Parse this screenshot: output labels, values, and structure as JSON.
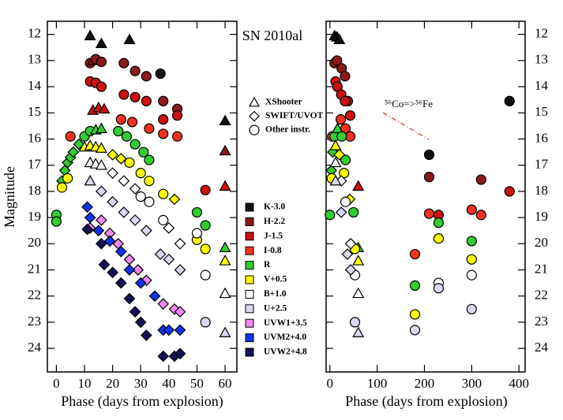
{
  "chart_data": {
    "type": "scatter",
    "title": "SN 2010al",
    "xlabel": "Phase (days from explosion)",
    "ylabel": "Magnitude",
    "annotation": "⁵⁶Co=>⁵⁶Fe",
    "ylim": [
      11.5,
      24.9
    ],
    "yticks": [
      12,
      13,
      14,
      15,
      16,
      17,
      18,
      19,
      20,
      21,
      22,
      23,
      24
    ],
    "bands": [
      {
        "name": "K-3.0",
        "color": "#111111"
      },
      {
        "name": "H-2.2",
        "color": "#8b1a1a"
      },
      {
        "name": "J-1.5",
        "color": "#cc1111"
      },
      {
        "name": "I-0.8",
        "color": "#ee3322"
      },
      {
        "name": "R",
        "color": "#33cc33"
      },
      {
        "name": "V+0.5",
        "color": "#ffff00"
      },
      {
        "name": "B+1.0",
        "color": "#ffffff"
      },
      {
        "name": "U+2.5",
        "color": "#d8d8f0"
      },
      {
        "name": "UVW1+3.5",
        "color": "#ee88ee"
      },
      {
        "name": "UVM2+4.0",
        "color": "#1133ee"
      },
      {
        "name": "UVW2+4.8",
        "color": "#111155"
      }
    ],
    "instrument_legend": [
      {
        "marker": "t",
        "label": "XShooter"
      },
      {
        "marker": "d",
        "label": "SWIFT/UVOT"
      },
      {
        "marker": "o",
        "label": "Other instr."
      }
    ],
    "panels": [
      {
        "xlim": [
          -3.2,
          64.2
        ],
        "xticks": [
          0,
          10,
          20,
          30,
          40,
          50,
          60
        ],
        "series": [
          {
            "x": [
              12,
              16,
              26,
              37,
              60
            ],
            "values": [
              12.05,
              12.35,
              12.2,
              13.5,
              15.3
            ],
            "markers": [
              "t",
              "t",
              "t",
              "o",
              "t"
            ]
          },
          {
            "x": [
              12,
              13,
              14,
              16,
              24,
              28,
              32,
              38,
              43,
              60
            ],
            "values": [
              13.1,
              13.0,
              12.95,
              13.05,
              13.1,
              13.4,
              13.6,
              14.55,
              14.85,
              16.45
            ],
            "markers": [
              "o",
              "t",
              "o",
              "o",
              "o",
              "o",
              "o",
              "o",
              "o",
              "t"
            ]
          },
          {
            "x": [
              12,
              14,
              16,
              13,
              15,
              17,
              24,
              28,
              32,
              38,
              43,
              53,
              60
            ],
            "values": [
              13.8,
              13.85,
              14.0,
              14.9,
              14.8,
              14.85,
              14.3,
              14.4,
              14.55,
              15.25,
              15.1,
              17.95,
              17.8
            ],
            "markers": [
              "o",
              "o",
              "o",
              "t",
              "t",
              "t",
              "o",
              "o",
              "o",
              "o",
              "o",
              "o",
              "t"
            ]
          },
          {
            "x": [
              5,
              23,
              27,
              33,
              38,
              43
            ],
            "values": [
              15.9,
              15.25,
              15.35,
              15.6,
              15.8,
              15.9
            ],
            "markers": [
              "o",
              "o",
              "o",
              "o",
              "o",
              "o"
            ]
          },
          {
            "x": [
              0,
              0,
              2,
              3,
              4,
              5,
              6,
              8,
              10,
              12,
              14,
              16,
              22,
              25,
              28,
              31,
              33,
              50,
              53,
              60
            ],
            "values": [
              18.9,
              19.15,
              17.6,
              17.2,
              16.9,
              16.7,
              16.5,
              16.2,
              15.9,
              15.7,
              15.65,
              15.6,
              15.7,
              15.9,
              16.2,
              16.5,
              16.8,
              18.8,
              19.3,
              20.15
            ],
            "markers": [
              "o",
              "o",
              "d",
              "d",
              "d",
              "d",
              "d",
              "d",
              "o",
              "o",
              "t",
              "t",
              "o",
              "o",
              "o",
              "o",
              "o",
              "o",
              "o",
              "t"
            ]
          },
          {
            "x": [
              2,
              4,
              10,
              12,
              14,
              16,
              20,
              23,
              26,
              30,
              33,
              38,
              42,
              50,
              53,
              60
            ],
            "values": [
              17.85,
              17.5,
              16.3,
              16.25,
              16.3,
              16.35,
              16.6,
              16.75,
              16.9,
              17.3,
              17.6,
              18.1,
              18.3,
              19.85,
              20.2,
              20.65
            ],
            "markers": [
              "o",
              "o",
              "t",
              "t",
              "t",
              "t",
              "d",
              "d",
              "o",
              "o",
              "o",
              "o",
              "d",
              "o",
              "o",
              "t"
            ]
          },
          {
            "x": [
              12,
              14,
              16,
              20,
              24,
              28,
              30,
              33,
              38,
              40,
              44,
              50,
              53,
              60
            ],
            "values": [
              16.9,
              16.95,
              17.0,
              17.3,
              17.6,
              17.9,
              18.2,
              18.4,
              19.1,
              19.4,
              20.0,
              19.6,
              21.2,
              21.9
            ],
            "markers": [
              "t",
              "t",
              "t",
              "d",
              "d",
              "d",
              "o",
              "o",
              "o",
              "d",
              "d",
              "o",
              "o",
              "t"
            ]
          },
          {
            "x": [
              12,
              16,
              20,
              24,
              28,
              32,
              37,
              40,
              44,
              53,
              60
            ],
            "values": [
              17.6,
              18.0,
              18.4,
              18.8,
              19.1,
              19.5,
              20.4,
              20.6,
              21.0,
              23.0,
              23.4
            ],
            "markers": [
              "t",
              "d",
              "d",
              "d",
              "d",
              "d",
              "d",
              "d",
              "d",
              "o",
              "t"
            ]
          },
          {
            "x": [
              12,
              16,
              19,
              22,
              26,
              29,
              32,
              38,
              42,
              44
            ],
            "values": [
              19.4,
              19.1,
              19.6,
              20.0,
              20.6,
              21.0,
              21.4,
              22.3,
              22.5,
              22.6
            ],
            "markers": [
              "d",
              "d",
              "d",
              "d",
              "d",
              "d",
              "d",
              "d",
              "d",
              "d"
            ]
          },
          {
            "x": [
              11,
              12,
              15,
              19,
              23,
              26,
              30,
              35,
              38,
              40,
              44
            ],
            "values": [
              18.6,
              19.0,
              19.5,
              19.9,
              20.3,
              21.0,
              21.5,
              22.0,
              23.3,
              23.3,
              23.3
            ],
            "markers": [
              "d",
              "d",
              "d",
              "d",
              "d",
              "d",
              "d",
              "d",
              "d",
              "d",
              "d"
            ]
          },
          {
            "x": [
              11,
              16,
              17,
              20,
              23,
              26,
              28,
              30,
              32,
              38,
              42,
              44
            ],
            "values": [
              19.45,
              20.0,
              20.8,
              21.1,
              21.5,
              22.1,
              22.6,
              23.0,
              23.5,
              24.3,
              24.3,
              24.2
            ],
            "markers": [
              "d",
              "d",
              "d",
              "d",
              "d",
              "d",
              "d",
              "d",
              "d",
              "d",
              "d",
              "d"
            ]
          }
        ]
      },
      {
        "xlim": [
          -8,
          413
        ],
        "xticks": [
          0,
          100,
          200,
          300,
          400
        ],
        "series": [
          {
            "x": [
              10,
              15,
              20,
              210,
              380
            ],
            "values": [
              12.05,
              12.1,
              12.2,
              16.6,
              14.55
            ],
            "markers": [
              "t",
              "t",
              "t",
              "o",
              "o"
            ]
          },
          {
            "x": [
              10,
              15,
              25,
              32,
              38,
              210,
              320
            ],
            "values": [
              13.1,
              13.0,
              13.3,
              13.6,
              14.55,
              17.45,
              17.55
            ],
            "markers": [
              "o",
              "o",
              "o",
              "o",
              "o",
              "o",
              "o"
            ]
          },
          {
            "x": [
              12,
              16,
              24,
              32,
              43,
              60,
              230,
              380
            ],
            "values": [
              13.8,
              14.0,
              14.3,
              14.55,
              15.1,
              17.8,
              18.9,
              18.0
            ],
            "markers": [
              "o",
              "o",
              "o",
              "o",
              "o",
              "t",
              "o",
              "o"
            ]
          },
          {
            "x": [
              5,
              23,
              33,
              43,
              180,
              210,
              300,
              320
            ],
            "values": [
              15.9,
              15.25,
              15.6,
              15.9,
              20.4,
              18.85,
              18.7,
              18.9
            ],
            "markers": [
              "o",
              "o",
              "o",
              "o",
              "o",
              "o",
              "o",
              "o"
            ]
          },
          {
            "x": [
              0,
              3,
              6,
              10,
              16,
              25,
              33,
              50,
              60,
              180,
              230,
              300
            ],
            "values": [
              18.9,
              17.2,
              16.5,
              15.9,
              15.6,
              15.9,
              16.8,
              18.8,
              20.15,
              21.6,
              19.2,
              19.9
            ],
            "markers": [
              "o",
              "d",
              "d",
              "o",
              "t",
              "o",
              "o",
              "o",
              "t",
              "o",
              "o",
              "o"
            ]
          },
          {
            "x": [
              4,
              12,
              20,
              30,
              42,
              53,
              60,
              180,
              230,
              300
            ],
            "values": [
              17.5,
              16.25,
              16.6,
              17.3,
              18.3,
              20.2,
              20.65,
              22.7,
              19.8,
              20.6
            ],
            "markers": [
              "o",
              "t",
              "d",
              "o",
              "d",
              "o",
              "t",
              "o",
              "o",
              "o"
            ]
          },
          {
            "x": [
              12,
              24,
              33,
              44,
              53,
              60,
              230,
              300
            ],
            "values": [
              16.9,
              17.6,
              18.4,
              20.0,
              21.2,
              21.9,
              21.5,
              21.2
            ],
            "markers": [
              "t",
              "d",
              "o",
              "d",
              "o",
              "t",
              "o",
              "o"
            ]
          },
          {
            "x": [
              12,
              24,
              37,
              44,
              53,
              60,
              180,
              230,
              300
            ],
            "values": [
              17.6,
              18.8,
              20.4,
              21.0,
              23.0,
              23.4,
              23.3,
              21.7,
              22.5
            ],
            "markers": [
              "t",
              "d",
              "d",
              "d",
              "o",
              "t",
              "o",
              "o",
              "o"
            ]
          },
          {
            "x": [],
            "values": [],
            "markers": []
          },
          {
            "x": [],
            "values": [],
            "markers": []
          },
          {
            "x": [],
            "values": [],
            "markers": []
          }
        ]
      }
    ]
  }
}
